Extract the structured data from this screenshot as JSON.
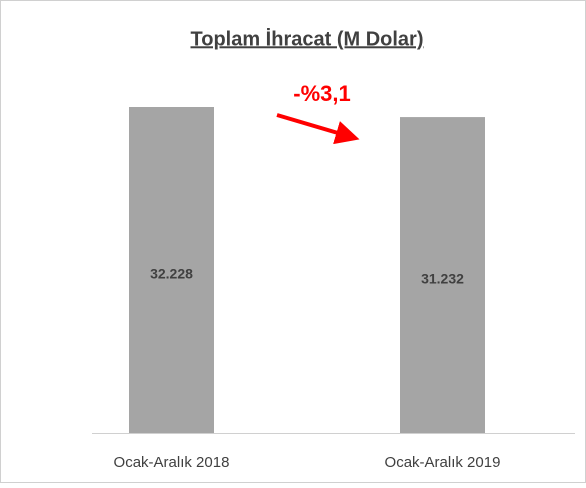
{
  "chart_data": {
    "type": "bar",
    "title": "Toplam İhracat (M Dolar)",
    "categories": [
      "Ocak-Aralık 2018",
      "Ocak-Aralık 2019"
    ],
    "values": [
      32228,
      31232
    ],
    "value_labels": [
      "32.228",
      "31.232"
    ],
    "color": "#a5a5a5",
    "annotation": "-%3,1",
    "annotation_color": "#ff0000"
  }
}
